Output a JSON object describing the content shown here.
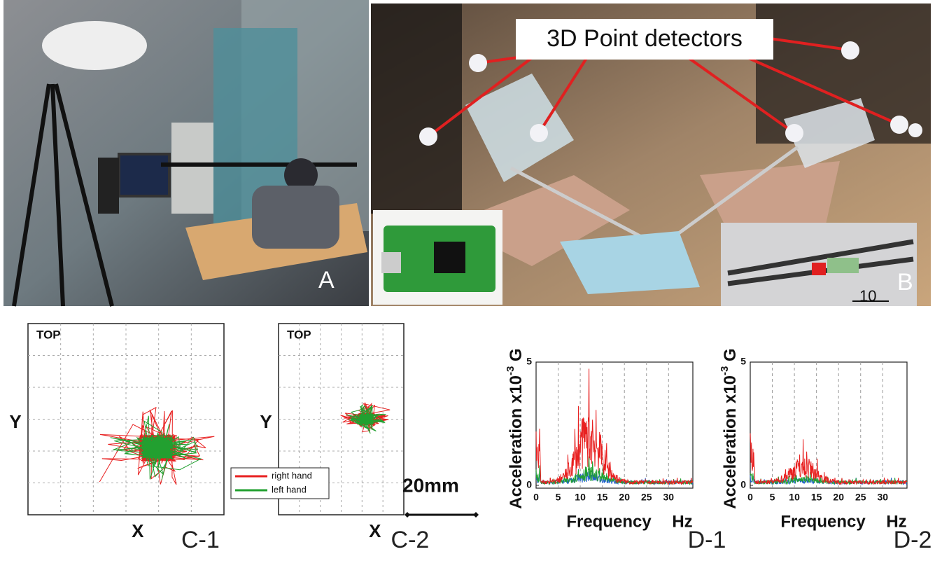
{
  "panel_a": {
    "label": "A"
  },
  "panel_b": {
    "callout": "3D Point detectors",
    "label": "B",
    "scale_label": "10"
  },
  "trajectory_plots": [
    {
      "title": "TOP",
      "y_label": "Y",
      "x_label": "X",
      "label": "C-1"
    },
    {
      "title": "TOP",
      "y_label": "Y",
      "x_label": "X",
      "label": "C-2"
    }
  ],
  "legend": [
    {
      "name": "right hand",
      "color": "#e82020"
    },
    {
      "name": "left hand",
      "color": "#22a030"
    }
  ],
  "scale_bar": "20mm",
  "spectra": [
    {
      "y_label": "Acceleration  x10",
      "y_label_exp": "-3",
      "y_label_unit": " G",
      "x_label": "Frequency",
      "x_unit": "Hz",
      "xlim": [
        0,
        35.5
      ],
      "ylim": [
        0,
        5
      ],
      "xticks": [
        0,
        5,
        10,
        15,
        20,
        25,
        30
      ],
      "yticks": [
        0,
        5
      ],
      "label": "D-1"
    },
    {
      "y_label": "Acceleration  x10",
      "y_label_exp": "-3",
      "y_label_unit": " G",
      "x_label": "Frequency",
      "x_unit": "Hz",
      "xlim": [
        0,
        35.5
      ],
      "ylim": [
        0,
        5
      ],
      "xticks": [
        0,
        5,
        10,
        15,
        20,
        25,
        30
      ],
      "yticks": [
        0,
        5
      ],
      "label": "D-2"
    }
  ]
}
